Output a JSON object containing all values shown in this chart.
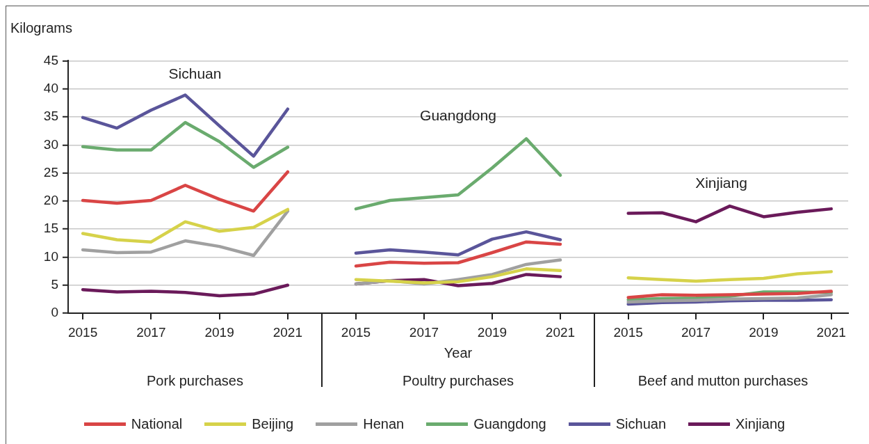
{
  "chart_data": [
    {
      "type": "line",
      "title": "Pork purchases",
      "ylabel": "Kilograms",
      "x": [
        2015,
        2016,
        2017,
        2018,
        2019,
        2020,
        2021
      ],
      "xlim": [
        2014.57,
        2022
      ],
      "xticks": [
        2015,
        2017,
        2019,
        2021
      ],
      "ylim": [
        0,
        45
      ],
      "yticks": [
        0,
        5,
        10,
        15,
        20,
        25,
        30,
        35,
        40,
        45
      ],
      "grid": "y",
      "legend": "bottom",
      "marker": "none",
      "line_style": "solid",
      "annotations": [
        "Sichuan"
      ],
      "series": [
        {
          "name": "National",
          "color": "#d94545",
          "values": [
            20.1,
            19.6,
            20.1,
            22.8,
            20.3,
            18.2,
            25.2
          ]
        },
        {
          "name": "Beijing",
          "color": "#d6d24a",
          "values": [
            14.2,
            13.1,
            12.7,
            16.3,
            14.6,
            15.3,
            18.5
          ]
        },
        {
          "name": "Henan",
          "color": "#a0a0a0",
          "values": [
            11.3,
            10.8,
            10.9,
            12.9,
            11.9,
            10.3,
            18.2
          ]
        },
        {
          "name": "Guangdong",
          "color": "#6aab6e",
          "values": [
            29.7,
            29.1,
            29.1,
            34.0,
            30.6,
            26.0,
            29.6
          ]
        },
        {
          "name": "Sichuan",
          "color": "#5a559a",
          "values": [
            34.9,
            33.0,
            36.2,
            38.9,
            33.4,
            28.0,
            36.4
          ]
        },
        {
          "name": "Xinjiang",
          "color": "#6a1a5a",
          "values": [
            4.2,
            3.8,
            3.9,
            3.7,
            3.1,
            3.4,
            5.0
          ]
        }
      ]
    },
    {
      "type": "line",
      "title": "Poultry purchases",
      "xlabel": "Year",
      "x": [
        2015,
        2016,
        2017,
        2018,
        2019,
        2020,
        2021
      ],
      "xlim": [
        2014,
        2022
      ],
      "xticks": [
        2015,
        2017,
        2019,
        2021
      ],
      "ylim": [
        0,
        45
      ],
      "yticks": [
        0,
        5,
        10,
        15,
        20,
        25,
        30,
        35,
        40,
        45
      ],
      "grid": "y",
      "tick_labels": "x",
      "marker": "none",
      "line_style": "solid",
      "series": [
        {
          "color": "#d94545",
          "values": [
            8.4,
            9.1,
            8.9,
            9.0,
            10.8,
            12.7,
            12.3
          ]
        },
        {
          "color": "#d6d24a",
          "values": [
            6.0,
            5.7,
            5.4,
            5.6,
            6.5,
            7.9,
            7.6
          ]
        },
        {
          "color": "#a0a0a0",
          "values": [
            5.2,
            5.8,
            5.2,
            6.0,
            6.9,
            8.7,
            9.5
          ]
        },
        {
          "name": "Guangdong",
          "color": "#6aab6e",
          "values": [
            18.6,
            20.1,
            20.6,
            21.1,
            25.9,
            31.1,
            24.6
          ]
        },
        {
          "color": "#5a559a",
          "values": [
            10.7,
            11.3,
            10.9,
            10.4,
            13.2,
            14.5,
            13.1
          ]
        },
        {
          "color": "#6a1a5a",
          "values": [
            5.2,
            5.8,
            6.0,
            4.9,
            5.3,
            6.9,
            6.5
          ]
        }
      ]
    },
    {
      "type": "line",
      "title": "Beef and mutton purchases",
      "x": [
        2015,
        2016,
        2017,
        2018,
        2019,
        2020,
        2021
      ],
      "xlim": [
        2014,
        2021.5
      ],
      "xticks": [
        2015,
        2017,
        2019,
        2021
      ],
      "ylim": [
        0,
        45
      ],
      "yticks": [
        0,
        5,
        10,
        15,
        20,
        25,
        30,
        35,
        40,
        45
      ],
      "grid": "y",
      "tick_labels": "x",
      "marker": "none",
      "line_style": "solid",
      "series": [
        {
          "color": "#d94545",
          "values": [
            2.8,
            3.3,
            3.2,
            3.3,
            3.4,
            3.5,
            3.9
          ]
        },
        {
          "color": "#d6d24a",
          "values": [
            6.3,
            6.0,
            5.7,
            6.0,
            6.2,
            7.0,
            7.4
          ]
        },
        {
          "color": "#a0a0a0",
          "values": [
            2.0,
            2.2,
            2.3,
            2.5,
            2.6,
            2.7,
            3.3
          ]
        },
        {
          "color": "#6aab6e",
          "values": [
            2.4,
            2.6,
            2.7,
            3.0,
            3.8,
            3.8,
            3.7
          ]
        },
        {
          "color": "#5a559a",
          "values": [
            1.6,
            1.9,
            2.0,
            2.2,
            2.3,
            2.3,
            2.4
          ]
        },
        {
          "name": "Xinjiang",
          "color": "#6a1a5a",
          "values": [
            17.8,
            17.9,
            16.3,
            19.1,
            17.2,
            18.0,
            18.6
          ]
        }
      ]
    }
  ]
}
